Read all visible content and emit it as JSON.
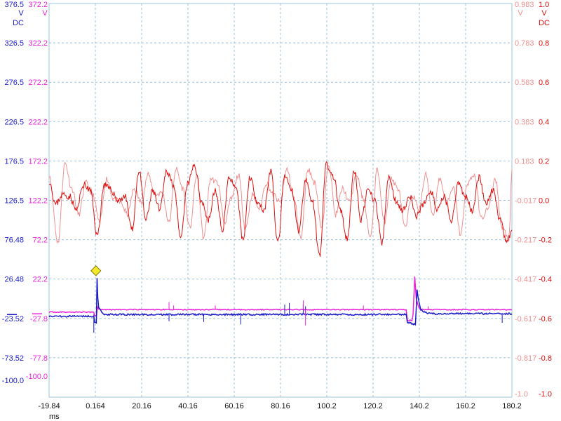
{
  "chart_data": {
    "type": "line",
    "title": "",
    "xlabel": "ms",
    "xlim": [
      -19.84,
      180.2
    ],
    "x_ticks": [
      "-19.84",
      "0.164",
      "20.16",
      "40.16",
      "60.16",
      "80.16",
      "100.2",
      "120.2",
      "140.2",
      "160.2",
      "180.2"
    ],
    "grid": true,
    "colors": {
      "ch1": "#1a1acc",
      "ch2": "#ee22dd",
      "ch3": "#f09090",
      "ch4": "#dd1111",
      "grid": "#9cc4dc",
      "trigger": "#f2e82e"
    },
    "axes": {
      "ch1": {
        "unit_top": "V",
        "unit_bottom": "DC",
        "ylim": [
          -100.0,
          376.5
        ],
        "ticks": [
          "376.5",
          "326.5",
          "276.5",
          "226.5",
          "176.5",
          "126.5",
          "76.48",
          "26.48",
          "-23.52",
          "-73.52",
          "-100.0"
        ]
      },
      "ch2": {
        "unit_top": "V",
        "ylim": [
          -100.0,
          372.2
        ],
        "ticks": [
          "372.2",
          "322.2",
          "272.2",
          "222.2",
          "172.2",
          "122.2",
          "72.2",
          "22.2",
          "-27.8",
          "-77.8",
          "-100.0"
        ]
      },
      "ch3": {
        "unit_top": "V",
        "ylim": [
          -1.0,
          0.983
        ],
        "ticks": [
          "0.983",
          "0.783",
          "0.583",
          "0.383",
          "0.183",
          "-0.017",
          "-0.217",
          "-0.417",
          "-0.617",
          "-0.817",
          "-1.0"
        ]
      },
      "ch4": {
        "unit_top": "V",
        "unit_bottom": "DC",
        "ylim": [
          -1.0,
          1.0
        ],
        "ticks": [
          "1.0",
          "0.8",
          "0.6",
          "0.4",
          "0.2",
          "0.0",
          "-0.2",
          "-0.4",
          "-0.6",
          "-0.8",
          "-1.0"
        ]
      }
    },
    "series": [
      {
        "channel": "ch1",
        "x": [
          -19.84,
          -0.5,
          -0.2,
          0.6,
          0.9,
          1.2,
          1.6,
          4,
          30,
          60,
          100,
          130,
          134.5,
          135,
          136.5,
          137,
          138.5,
          139.2,
          140,
          140.8,
          142,
          145,
          180.2
        ],
        "y": [
          -2,
          -2,
          -10,
          -10,
          45,
          22,
          8,
          0,
          0,
          0,
          0,
          0,
          0,
          -10,
          -10,
          -12,
          -12,
          30,
          15,
          6,
          3,
          1,
          1
        ]
      },
      {
        "channel": "ch2",
        "x": [
          -19.84,
          -0.5,
          -0.2,
          0.7,
          1.0,
          1.6,
          4,
          30,
          60,
          100,
          130,
          134.5,
          135,
          137,
          137.5,
          138.2,
          138.8,
          139.6,
          140.4,
          142,
          180.2
        ],
        "y": [
          2,
          2,
          -2,
          -2,
          8,
          6,
          5,
          5,
          5,
          5,
          5,
          5,
          -8,
          -8,
          0,
          45,
          20,
          10,
          6,
          5,
          5
        ]
      },
      {
        "channel": "ch3",
        "x": [
          -19.84,
          -16,
          -13,
          -10,
          -7,
          -4,
          -1,
          2,
          5,
          8,
          11,
          14,
          17,
          20,
          23,
          26,
          29,
          32,
          35,
          38,
          41,
          44,
          47,
          50,
          53,
          56,
          59,
          62,
          65,
          68,
          71,
          74,
          77,
          80,
          83,
          86,
          89,
          92,
          95,
          98,
          101,
          104,
          107,
          110,
          113,
          116,
          119,
          122,
          125,
          128,
          131,
          134,
          137,
          140,
          143,
          146,
          149,
          152,
          155,
          158,
          161,
          164,
          167,
          170,
          173,
          176,
          179,
          180.2
        ],
        "y": [
          0.12,
          -0.22,
          0.18,
          0.05,
          -0.08,
          0.08,
          0.02,
          -0.12,
          0.1,
          0.0,
          -0.02,
          -0.08,
          0.05,
          -0.02,
          0.12,
          0.02,
          0.03,
          -0.12,
          0.15,
          0.05,
          -0.15,
          0.12,
          -0.2,
          0.1,
          0.08,
          -0.12,
          0.0,
          0.12,
          -0.15,
          0.02,
          -0.05,
          0.08,
          0.02,
          -0.02,
          0.15,
          0.0,
          -0.2,
          0.15,
          0.08,
          -0.15,
          0.18,
          -0.08,
          0.05,
          -0.02,
          0.12,
          0.0,
          -0.2,
          0.15,
          -0.12,
          0.1,
          0.05,
          -0.15,
          0.02,
          -0.05,
          0.12,
          -0.08,
          0.1,
          -0.02,
          0.05,
          -0.18,
          0.08,
          0.12,
          -0.1,
          -0.05,
          0.1,
          -0.15,
          -0.2,
          0.15
        ]
      },
      {
        "channel": "ch4",
        "x": [
          -19.84,
          -17,
          -14,
          -11,
          -8,
          -5,
          -2,
          1,
          4,
          7,
          10,
          13,
          16,
          19,
          22,
          25,
          28,
          31,
          34,
          37,
          40,
          43,
          46,
          49,
          52,
          55,
          58,
          61,
          64,
          67,
          70,
          73,
          76,
          79,
          82,
          85,
          88,
          91,
          94,
          97,
          100,
          103,
          106,
          109,
          112,
          115,
          118,
          121,
          124,
          127,
          130,
          133,
          136,
          139,
          142,
          145,
          148,
          151,
          154,
          157,
          160,
          163,
          166,
          169,
          172,
          175,
          178,
          180.2
        ],
        "y": [
          0.1,
          -0.02,
          0.03,
          0.02,
          -0.05,
          0.08,
          0.05,
          -0.18,
          0.08,
          0.05,
          0.0,
          0.02,
          -0.15,
          0.15,
          -0.1,
          0.05,
          -0.05,
          0.15,
          0.08,
          -0.2,
          0.08,
          0.18,
          0.0,
          -0.1,
          0.05,
          -0.15,
          0.12,
          0.05,
          -0.2,
          0.12,
          0.0,
          -0.05,
          0.15,
          -0.22,
          0.12,
          0.05,
          -0.15,
          0.1,
          0.0,
          -0.28,
          0.18,
          0.12,
          -0.05,
          -0.2,
          0.15,
          -0.1,
          0.05,
          0.0,
          -0.22,
          0.12,
          0.0,
          -0.05,
          0.02,
          -0.08,
          -0.02,
          0.05,
          -0.05,
          0.02,
          -0.1,
          0.08,
          0.02,
          -0.05,
          0.12,
          -0.02,
          0.05,
          -0.1,
          -0.22,
          -0.15
        ]
      }
    ],
    "ch1_spikes": [
      [
        -0.5,
        -22
      ],
      [
        32,
        -8
      ],
      [
        47,
        -9
      ],
      [
        63,
        -12
      ],
      [
        82,
        12
      ],
      [
        84,
        14
      ],
      [
        90,
        12
      ],
      [
        91,
        10
      ],
      [
        176,
        -10
      ]
    ],
    "ch2_spikes": [
      [
        32,
        14
      ],
      [
        34,
        10
      ],
      [
        52,
        10
      ],
      [
        90,
        16
      ],
      [
        91,
        -14
      ],
      [
        116,
        10
      ],
      [
        144,
        9
      ]
    ],
    "trigger": {
      "x": 0.4,
      "y": 53,
      "axis": "ch1"
    },
    "ref_markers": [
      {
        "axis": "ch1",
        "y": 0
      },
      {
        "axis": "ch2",
        "y": 0
      }
    ]
  }
}
